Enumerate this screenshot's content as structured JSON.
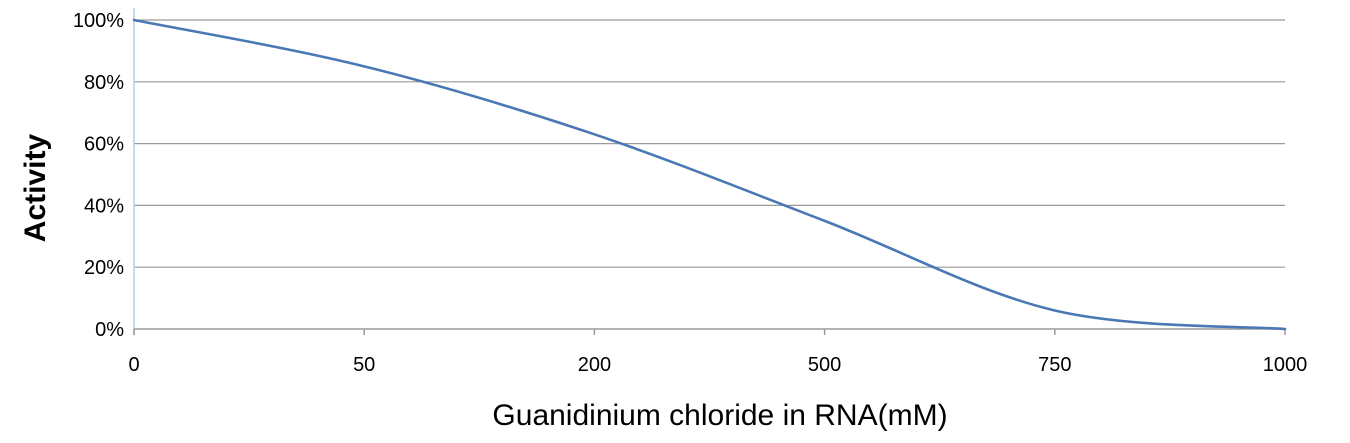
{
  "chart_data": {
    "type": "line",
    "title": "",
    "xlabel": "Guanidinium chloride in RNA(mM)",
    "ylabel": "Activity",
    "x_categories": [
      "0",
      "50",
      "200",
      "500",
      "750",
      "1000"
    ],
    "y_ticks": [
      "0%",
      "20%",
      "40%",
      "60%",
      "80%",
      "100%"
    ],
    "ylim": [
      0,
      100
    ],
    "grid": true,
    "legend": "none",
    "series": [
      {
        "color": "#4a78b5",
        "x": [
          "0",
          "50",
          "200",
          "500",
          "750",
          "1000"
        ],
        "values": [
          100,
          85,
          63,
          35,
          6,
          0
        ]
      }
    ]
  }
}
